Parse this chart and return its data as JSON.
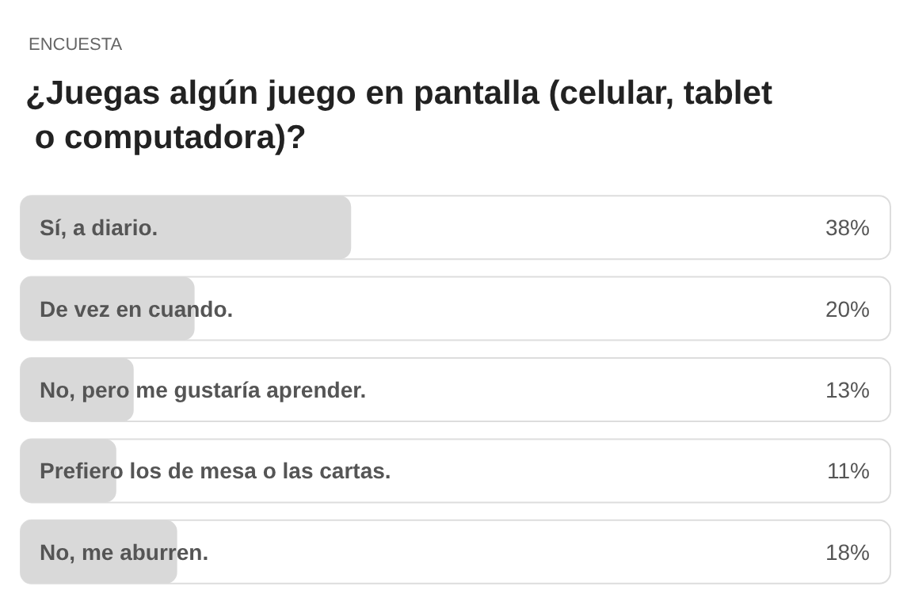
{
  "chart_data": {
    "type": "bar",
    "orientation": "horizontal",
    "subtitle": "ENCUESTA",
    "title": "¿Juegas algún juego en pantalla (celular, tablet o computadora)?",
    "categories": [
      "Sí, a diario.",
      "De vez en cuando.",
      "No, pero me gustaría aprender.",
      "Prefiero los de mesa o las cartas.",
      "No, me aburren."
    ],
    "values": [
      38,
      20,
      13,
      11,
      18
    ],
    "value_labels": [
      "38%",
      "20%",
      "13%",
      "11%",
      "18%"
    ],
    "color": "#d9d9d9",
    "xlim": [
      0,
      100
    ]
  }
}
